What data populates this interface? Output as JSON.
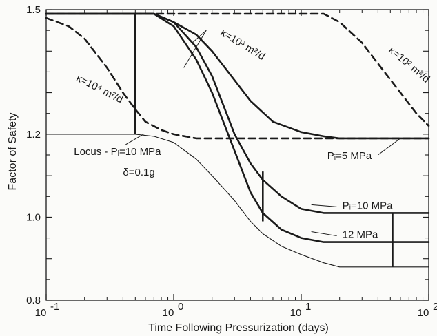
{
  "chart_data": {
    "type": "line",
    "title": "",
    "xlabel": "Time Following Pressurization (days)",
    "ylabel": "Factor of Safety",
    "x_scale": "log",
    "xlim": [
      0.1,
      100
    ],
    "ylim": [
      0.8,
      1.5
    ],
    "grid": false,
    "x_ticks": [
      {
        "value": 0.1,
        "base": "10",
        "exp": "-1"
      },
      {
        "value": 1,
        "base": "10",
        "exp": "0"
      },
      {
        "value": 10,
        "base": "10",
        "exp": "1"
      },
      {
        "value": 100,
        "base": "10",
        "exp": "2"
      }
    ],
    "y_ticks": [
      {
        "value": 0.8,
        "label": "0.8"
      },
      {
        "value": 1.0,
        "label": "1.0"
      },
      {
        "value": 1.2,
        "label": "1.2"
      },
      {
        "value": 1.5,
        "label": "1.5"
      }
    ],
    "series": [
      {
        "style": "dashed",
        "width": 2.6,
        "points": [
          [
            0.1,
            1.48
          ],
          [
            0.15,
            1.46
          ],
          [
            0.2,
            1.43
          ],
          [
            0.3,
            1.36
          ],
          [
            0.4,
            1.3
          ],
          [
            0.5,
            1.26
          ],
          [
            0.6,
            1.23
          ],
          [
            0.8,
            1.21
          ],
          [
            1,
            1.2
          ],
          [
            1.5,
            1.19
          ],
          [
            100,
            1.19
          ]
        ]
      },
      {
        "style": "solid",
        "width": 2.6,
        "points": [
          [
            0.1,
            1.49
          ],
          [
            0.7,
            1.49
          ],
          [
            1,
            1.47
          ],
          [
            1.5,
            1.44
          ],
          [
            2,
            1.4
          ],
          [
            3,
            1.33
          ],
          [
            4,
            1.28
          ],
          [
            6,
            1.23
          ],
          [
            10,
            1.205
          ],
          [
            15,
            1.195
          ],
          [
            20,
            1.19
          ],
          [
            100,
            1.19
          ]
        ]
      },
      {
        "style": "dashed",
        "width": 2.6,
        "points": [
          [
            0.1,
            1.49
          ],
          [
            15,
            1.49
          ],
          [
            20,
            1.47
          ],
          [
            30,
            1.42
          ],
          [
            40,
            1.37
          ],
          [
            60,
            1.3
          ],
          [
            80,
            1.25
          ],
          [
            100,
            1.22
          ]
        ]
      },
      {
        "style": "solid",
        "width": 1.1,
        "points": [
          [
            0.1,
            1.2
          ],
          [
            0.5,
            1.2
          ],
          [
            0.7,
            1.195
          ],
          [
            1,
            1.18
          ],
          [
            1.5,
            1.14
          ],
          [
            2,
            1.1
          ],
          [
            3,
            1.04
          ],
          [
            4,
            0.99
          ],
          [
            5,
            0.96
          ],
          [
            7,
            0.93
          ],
          [
            10,
            0.91
          ],
          [
            15,
            0.89
          ],
          [
            20,
            0.88
          ],
          [
            100,
            0.88
          ]
        ]
      },
      {
        "style": "solid",
        "width": 2.6,
        "points": [
          [
            0.1,
            1.49
          ],
          [
            0.7,
            1.49
          ],
          [
            1,
            1.47
          ],
          [
            1.5,
            1.41
          ],
          [
            2,
            1.34
          ],
          [
            3,
            1.2
          ],
          [
            4,
            1.13
          ],
          [
            5,
            1.09
          ],
          [
            7,
            1.05
          ],
          [
            10,
            1.02
          ],
          [
            15,
            1.01
          ],
          [
            100,
            1.01
          ]
        ]
      },
      {
        "style": "solid",
        "width": 2.6,
        "points": [
          [
            0.1,
            1.49
          ],
          [
            0.7,
            1.49
          ],
          [
            1,
            1.46
          ],
          [
            1.5,
            1.38
          ],
          [
            2,
            1.3
          ],
          [
            3,
            1.16
          ],
          [
            4,
            1.06
          ],
          [
            5,
            1.01
          ],
          [
            7,
            0.97
          ],
          [
            10,
            0.95
          ],
          [
            15,
            0.94
          ],
          [
            100,
            0.94
          ]
        ]
      }
    ],
    "markers": [
      {
        "x": 0.5,
        "y1": 1.2,
        "y2": 1.49
      },
      {
        "x": 5,
        "y1": 0.99,
        "y2": 1.11
      },
      {
        "x": 52,
        "y1": 0.88,
        "y2": 1.01
      }
    ],
    "annotations": [
      {
        "id": "kappa-1e4",
        "text": "κ=10⁴ m²/d",
        "x": 0.17,
        "y": 1.33,
        "angle": 27
      },
      {
        "id": "kappa-1e3",
        "text": "κ=10³ m²/d",
        "x": 2.3,
        "y": 1.44,
        "angle": 31
      },
      {
        "id": "kappa-1e2",
        "text": "κ=10² m²/d",
        "x": 48,
        "y": 1.4,
        "angle": 40
      },
      {
        "id": "locus",
        "text": "Locus - Pᵢ=10 MPa",
        "x": 0.165,
        "y": 1.15,
        "angle": 0
      },
      {
        "id": "delta",
        "text": "δ=0.1g",
        "x": 0.4,
        "y": 1.1,
        "angle": 0
      },
      {
        "id": "pi-5",
        "text": "Pᵢ=5 MPa",
        "x": 16,
        "y": 1.14,
        "angle": 0
      },
      {
        "id": "pi-10",
        "text": "Pᵢ=10 MPa",
        "x": 21,
        "y": 1.02,
        "angle": 0
      },
      {
        "id": "p-12",
        "text": "12 MPa",
        "x": 21,
        "y": 0.95,
        "angle": 0
      }
    ],
    "leaders": [
      {
        "from": [
          1.8,
          1.45
        ],
        "to": [
          1.4,
          1.42
        ]
      },
      {
        "from": [
          1.8,
          1.45
        ],
        "to": [
          1.2,
          1.36
        ]
      },
      {
        "from": [
          0.42,
          1.175
        ],
        "to": [
          0.58,
          1.2
        ]
      },
      {
        "from": [
          40,
          1.15
        ],
        "to": [
          60,
          1.19
        ]
      },
      {
        "from": [
          19,
          1.025
        ],
        "to": [
          12,
          1.03
        ]
      },
      {
        "from": [
          19,
          0.955
        ],
        "to": [
          12,
          0.965
        ]
      }
    ]
  }
}
